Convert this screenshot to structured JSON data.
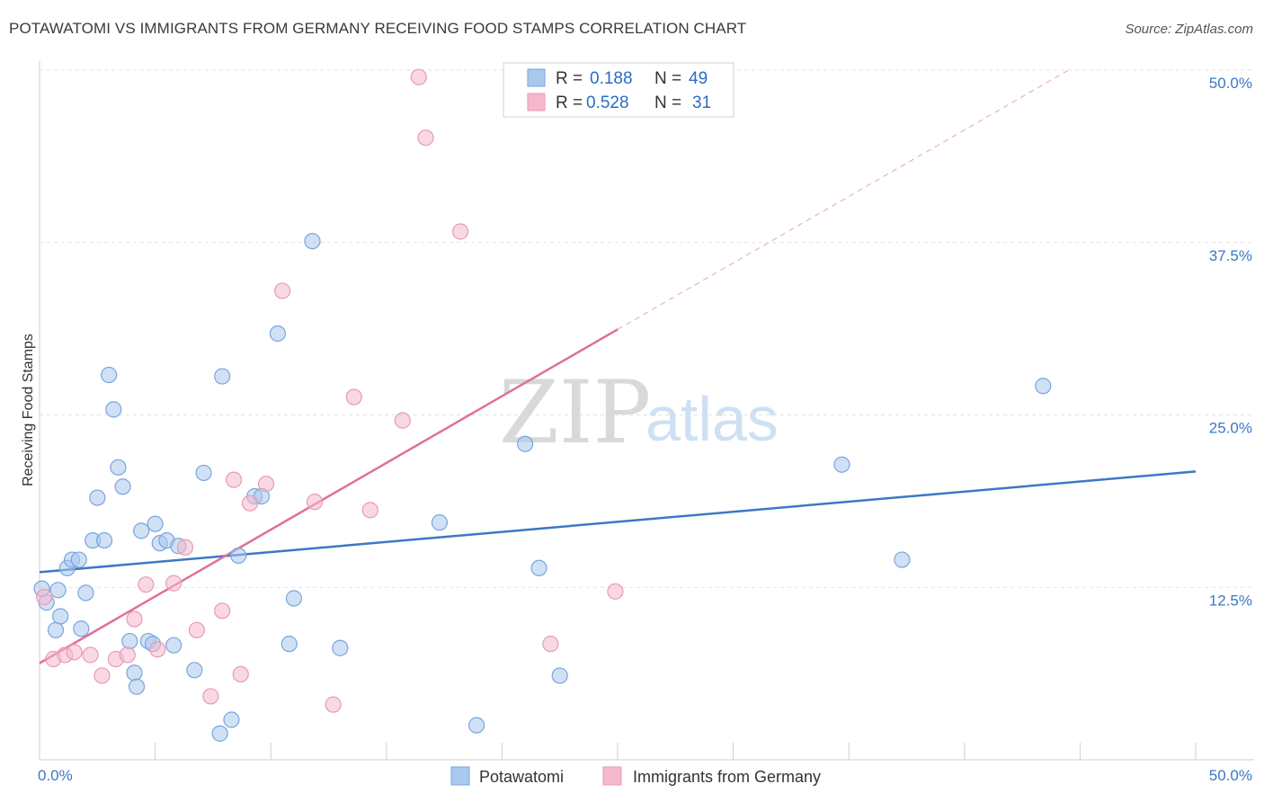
{
  "title": "POTAWATOMI VS IMMIGRANTS FROM GERMANY RECEIVING FOOD STAMPS CORRELATION CHART",
  "source": "Source: ZipAtlas.com",
  "watermark": {
    "zip": "ZIP",
    "atlas": "atlas"
  },
  "colors": {
    "blue": "#3b78c4",
    "blue_fill": "#a9c8ee",
    "pink": "#e0709a",
    "pink_fill": "#f5b8cc"
  },
  "chart_data": {
    "type": "scatter",
    "title": "POTAWATOMI VS IMMIGRANTS FROM GERMANY RECEIVING FOOD STAMPS CORRELATION CHART",
    "xlabel": "",
    "ylabel": "Receiving Food Stamps",
    "xlim": [
      0,
      50
    ],
    "ylim": [
      0,
      50
    ],
    "x_tick_labels": [
      "0.0%",
      "50.0%"
    ],
    "y_ticks": [
      12.5,
      25.0,
      37.5,
      50.0
    ],
    "y_tick_labels": [
      "12.5%",
      "25.0%",
      "37.5%",
      "50.0%"
    ],
    "grid": true,
    "legend": {
      "position": "top-center",
      "entries": [
        {
          "r_label": "R =",
          "r": "0.188",
          "n_label": "N =",
          "n": "49"
        },
        {
          "r_label": "R =",
          "r": "0.528",
          "n_label": "N =",
          "n": "31"
        }
      ]
    },
    "series": [
      {
        "name": "Potawatomi",
        "color": "#3b78c4",
        "trend": {
          "x0": 0,
          "y0": 13.6,
          "x1": 50,
          "y1": 20.9
        },
        "points": [
          [
            0.1,
            12.4
          ],
          [
            0.3,
            11.4
          ],
          [
            0.7,
            9.4
          ],
          [
            0.8,
            12.3
          ],
          [
            0.9,
            10.4
          ],
          [
            1.2,
            13.9
          ],
          [
            1.4,
            14.5
          ],
          [
            1.7,
            14.5
          ],
          [
            1.8,
            9.5
          ],
          [
            2.0,
            12.1
          ],
          [
            2.3,
            15.9
          ],
          [
            2.5,
            19.0
          ],
          [
            2.8,
            15.9
          ],
          [
            3.0,
            27.9
          ],
          [
            3.2,
            25.4
          ],
          [
            3.4,
            21.2
          ],
          [
            3.6,
            19.8
          ],
          [
            3.9,
            8.6
          ],
          [
            4.1,
            6.3
          ],
          [
            4.2,
            5.3
          ],
          [
            4.4,
            16.6
          ],
          [
            4.7,
            8.6
          ],
          [
            4.9,
            8.4
          ],
          [
            5.0,
            17.1
          ],
          [
            5.2,
            15.7
          ],
          [
            5.5,
            15.9
          ],
          [
            5.8,
            8.3
          ],
          [
            6.0,
            15.5
          ],
          [
            6.7,
            6.5
          ],
          [
            7.1,
            20.8
          ],
          [
            7.8,
            1.9
          ],
          [
            7.9,
            27.8
          ],
          [
            8.3,
            2.9
          ],
          [
            8.6,
            14.8
          ],
          [
            9.3,
            19.1
          ],
          [
            9.6,
            19.1
          ],
          [
            10.3,
            30.9
          ],
          [
            10.8,
            8.4
          ],
          [
            11.0,
            11.7
          ],
          [
            11.8,
            37.6
          ],
          [
            13.0,
            8.1
          ],
          [
            17.3,
            17.2
          ],
          [
            18.9,
            2.5
          ],
          [
            21.0,
            22.9
          ],
          [
            21.6,
            13.9
          ],
          [
            22.5,
            6.1
          ],
          [
            34.7,
            21.4
          ],
          [
            37.3,
            14.5
          ],
          [
            43.4,
            27.1
          ]
        ]
      },
      {
        "name": "Immigrants from Germany",
        "color": "#e0709a",
        "trend": {
          "x0": 0,
          "y0": 7.0,
          "x1": 25,
          "y1": 31.2,
          "dash_x1": 44.5,
          "dash_y1": 50.0
        },
        "points": [
          [
            0.2,
            11.8
          ],
          [
            0.6,
            7.3
          ],
          [
            1.1,
            7.6
          ],
          [
            1.5,
            7.8
          ],
          [
            2.2,
            7.6
          ],
          [
            2.7,
            6.1
          ],
          [
            3.3,
            7.3
          ],
          [
            3.8,
            7.6
          ],
          [
            4.1,
            10.2
          ],
          [
            4.6,
            12.7
          ],
          [
            5.1,
            8.0
          ],
          [
            5.8,
            12.8
          ],
          [
            6.3,
            15.4
          ],
          [
            6.8,
            9.4
          ],
          [
            7.4,
            4.6
          ],
          [
            7.9,
            10.8
          ],
          [
            8.4,
            20.3
          ],
          [
            8.7,
            6.2
          ],
          [
            9.1,
            18.6
          ],
          [
            9.8,
            20.0
          ],
          [
            10.5,
            34.0
          ],
          [
            11.9,
            18.7
          ],
          [
            12.7,
            4.0
          ],
          [
            13.6,
            26.3
          ],
          [
            14.3,
            18.1
          ],
          [
            15.7,
            24.6
          ],
          [
            16.4,
            49.5
          ],
          [
            16.7,
            45.1
          ],
          [
            18.2,
            38.3
          ],
          [
            22.1,
            8.4
          ],
          [
            24.9,
            12.2
          ]
        ]
      }
    ]
  }
}
